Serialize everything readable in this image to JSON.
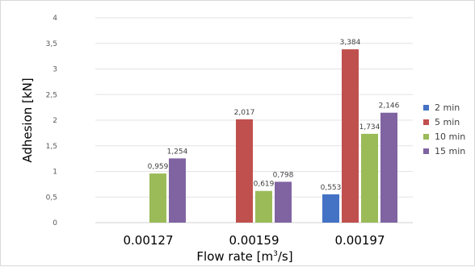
{
  "chart_data": {
    "type": "bar",
    "categories": [
      "0.00127",
      "0.00159",
      "0.00197"
    ],
    "series": [
      {
        "name": "2 min",
        "color": "#4472c4",
        "values": [
          null,
          null,
          0.553
        ],
        "labels": [
          "",
          "",
          "0,553"
        ]
      },
      {
        "name": "5 min",
        "color": "#c0504d",
        "values": [
          null,
          2.017,
          3.384
        ],
        "labels": [
          "",
          "2,017",
          "3,384"
        ]
      },
      {
        "name": "10 min",
        "color": "#9bbb59",
        "values": [
          0.959,
          0.619,
          1.734
        ],
        "labels": [
          "0,959",
          "0,619",
          "1,734"
        ]
      },
      {
        "name": "15 min",
        "color": "#8064a2",
        "values": [
          1.254,
          0.798,
          2.146
        ],
        "labels": [
          "1,254",
          "0,798",
          "2,146"
        ]
      }
    ],
    "ylabel": "Adhesion [kN]",
    "xlabel_prefix": "Flow rate [m",
    "xlabel_sup": "3",
    "xlabel_suffix": "/s]",
    "ylim": [
      0,
      4
    ],
    "yticks": [
      {
        "value": 0,
        "label": "0"
      },
      {
        "value": 0.5,
        "label": "0,5"
      },
      {
        "value": 1,
        "label": "1"
      },
      {
        "value": 1.5,
        "label": "1,5"
      },
      {
        "value": 2,
        "label": "2"
      },
      {
        "value": 2.5,
        "label": "2,5"
      },
      {
        "value": 3,
        "label": "3"
      },
      {
        "value": 3.5,
        "label": "3,5"
      },
      {
        "value": 4,
        "label": "4"
      }
    ],
    "grid": true,
    "legend": "right"
  }
}
